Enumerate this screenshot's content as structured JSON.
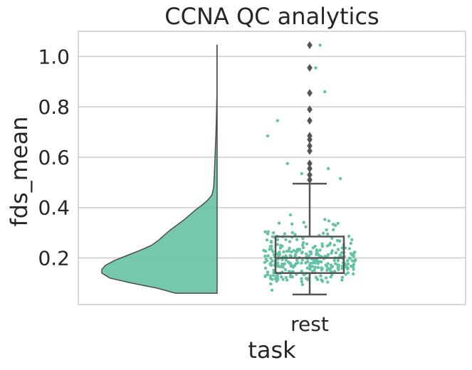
{
  "chart_data": {
    "type": "raincloud",
    "title": "CCNA QC analytics",
    "xlabel": "task",
    "ylabel": "fds_mean",
    "categories": [
      "rest"
    ],
    "ylim": [
      0.015,
      1.1
    ],
    "yticks": [
      0.2,
      0.4,
      0.6,
      0.8,
      1.0
    ],
    "ytick_labels": [
      "0.2",
      "0.4",
      "0.6",
      "0.8",
      "1.0"
    ],
    "grid": true,
    "colors": {
      "fill": "#66c2a5",
      "edge": "#4d4d4d",
      "grid": "#cccccc",
      "box": "#555555"
    },
    "violin": {
      "side": "left",
      "density": [
        [
          0.06,
          0.36
        ],
        [
          0.08,
          0.52
        ],
        [
          0.1,
          0.74
        ],
        [
          0.12,
          0.93
        ],
        [
          0.14,
          1.0
        ],
        [
          0.155,
          1.0
        ],
        [
          0.17,
          0.97
        ],
        [
          0.19,
          0.89
        ],
        [
          0.21,
          0.78
        ],
        [
          0.23,
          0.67
        ],
        [
          0.25,
          0.57
        ],
        [
          0.27,
          0.51
        ],
        [
          0.29,
          0.46
        ],
        [
          0.31,
          0.41
        ],
        [
          0.33,
          0.35
        ],
        [
          0.35,
          0.29
        ],
        [
          0.37,
          0.24
        ],
        [
          0.39,
          0.19
        ],
        [
          0.41,
          0.13
        ],
        [
          0.43,
          0.08
        ],
        [
          0.45,
          0.045
        ],
        [
          0.48,
          0.03
        ],
        [
          0.52,
          0.025
        ],
        [
          0.58,
          0.02
        ],
        [
          0.64,
          0.015
        ],
        [
          0.7,
          0.01
        ],
        [
          0.76,
          0.006
        ],
        [
          0.85,
          0.002
        ],
        [
          0.95,
          0.002
        ],
        [
          1.045,
          0.002
        ]
      ]
    },
    "box": {
      "whisker_low": 0.055,
      "q1": 0.14,
      "median": 0.2,
      "q3": 0.285,
      "whisker_high": 0.495,
      "outliers": [
        0.51,
        0.53,
        0.555,
        0.575,
        0.625,
        0.645,
        0.67,
        0.685,
        0.745,
        0.79,
        0.855,
        0.955,
        1.045
      ]
    },
    "strip_extremes": [
      1.045,
      0.955,
      0.86,
      0.745,
      0.685,
      0.575,
      0.555,
      0.535,
      0.515
    ]
  }
}
